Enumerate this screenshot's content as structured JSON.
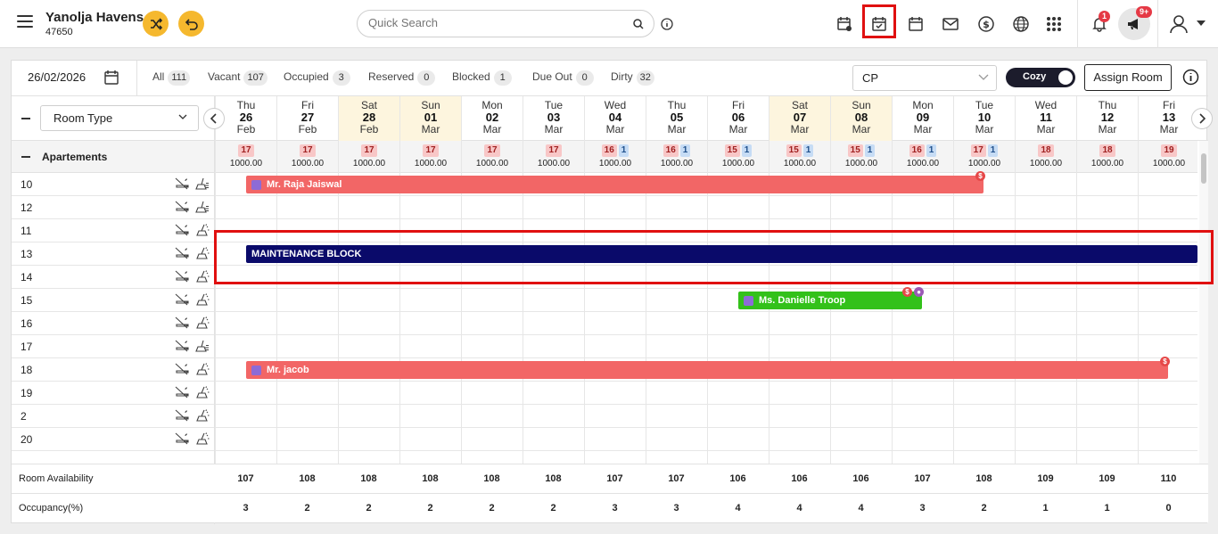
{
  "app": {
    "hotel_name": "Yanolja Havens",
    "hotel_id": "47650"
  },
  "search": {
    "placeholder": "Quick Search"
  },
  "notifications": {
    "bell_count": "1",
    "announce_count": "9+"
  },
  "colors": {
    "accent": "#f5b82e",
    "booking_red": "#f26666",
    "block_navy": "#0a0a6a",
    "booking_green": "#33c11a",
    "weekend": "#fdf5de"
  },
  "filterbar": {
    "date": "26/02/2026",
    "filters": [
      {
        "label": "All",
        "count": "111"
      },
      {
        "label": "Vacant",
        "count": "107"
      },
      {
        "label": "Occupied",
        "count": "3"
      },
      {
        "label": "Reserved",
        "count": "0"
      },
      {
        "label": "Blocked",
        "count": "1"
      },
      {
        "label": "Due Out",
        "count": "0"
      },
      {
        "label": "Dirty",
        "count": "32"
      }
    ],
    "rate_plan": "CP",
    "view_toggle": "Cozy",
    "assign_button": "Assign Room"
  },
  "grid": {
    "room_type_select": "Room Type",
    "days": [
      {
        "dn": "Thu",
        "dd": "26",
        "mm": "Feb",
        "weekend": false
      },
      {
        "dn": "Fri",
        "dd": "27",
        "mm": "Feb",
        "weekend": false
      },
      {
        "dn": "Sat",
        "dd": "28",
        "mm": "Feb",
        "weekend": true
      },
      {
        "dn": "Sun",
        "dd": "01",
        "mm": "Mar",
        "weekend": true
      },
      {
        "dn": "Mon",
        "dd": "02",
        "mm": "Mar",
        "weekend": false
      },
      {
        "dn": "Tue",
        "dd": "03",
        "mm": "Mar",
        "weekend": false
      },
      {
        "dn": "Wed",
        "dd": "04",
        "mm": "Mar",
        "weekend": false
      },
      {
        "dn": "Thu",
        "dd": "05",
        "mm": "Mar",
        "weekend": false
      },
      {
        "dn": "Fri",
        "dd": "06",
        "mm": "Mar",
        "weekend": false
      },
      {
        "dn": "Sat",
        "dd": "07",
        "mm": "Mar",
        "weekend": true
      },
      {
        "dn": "Sun",
        "dd": "08",
        "mm": "Mar",
        "weekend": true
      },
      {
        "dn": "Mon",
        "dd": "09",
        "mm": "Mar",
        "weekend": false
      },
      {
        "dn": "Tue",
        "dd": "10",
        "mm": "Mar",
        "weekend": false
      },
      {
        "dn": "Wed",
        "dd": "11",
        "mm": "Mar",
        "weekend": false
      },
      {
        "dn": "Thu",
        "dd": "12",
        "mm": "Mar",
        "weekend": false
      },
      {
        "dn": "Fri",
        "dd": "13",
        "mm": "Mar",
        "weekend": false
      }
    ],
    "category": {
      "name": "Apartements",
      "avail": [
        {
          "a": "17",
          "b": ""
        },
        {
          "a": "17",
          "b": ""
        },
        {
          "a": "17",
          "b": ""
        },
        {
          "a": "17",
          "b": ""
        },
        {
          "a": "17",
          "b": ""
        },
        {
          "a": "17",
          "b": ""
        },
        {
          "a": "16",
          "b": "1"
        },
        {
          "a": "16",
          "b": "1"
        },
        {
          "a": "15",
          "b": "1"
        },
        {
          "a": "15",
          "b": "1"
        },
        {
          "a": "15",
          "b": "1"
        },
        {
          "a": "16",
          "b": "1"
        },
        {
          "a": "17",
          "b": "1"
        },
        {
          "a": "18",
          "b": ""
        },
        {
          "a": "18",
          "b": ""
        },
        {
          "a": "19",
          "b": ""
        }
      ],
      "rate": "1000.00"
    },
    "rooms": [
      {
        "no": "10",
        "clean": false
      },
      {
        "no": "12",
        "clean": false
      },
      {
        "no": "11",
        "clean": true
      },
      {
        "no": "13",
        "clean": true
      },
      {
        "no": "14",
        "clean": true
      },
      {
        "no": "15",
        "clean": true
      },
      {
        "no": "16",
        "clean": true
      },
      {
        "no": "17",
        "clean": false
      },
      {
        "no": "18",
        "clean": true
      },
      {
        "no": "19",
        "clean": true
      },
      {
        "no": "2",
        "clean": true
      },
      {
        "no": "20",
        "clean": true
      }
    ],
    "bookings": [
      {
        "name": "Mr. Raja Jaiswal",
        "row": 0,
        "start": 0,
        "end": 12,
        "color": "#f26666",
        "icon": true,
        "badges": [
          "$"
        ]
      },
      {
        "name": "MAINTENANCE BLOCK",
        "row": 3,
        "start": 0,
        "end": 16,
        "color": "#0a0a6a",
        "icon": false,
        "badges": []
      },
      {
        "name": "Ms. Danielle Troop",
        "row": 5,
        "start": 8,
        "end": 11,
        "color": "#33c11a",
        "icon": true,
        "badges": [
          "$",
          "●"
        ]
      },
      {
        "name": "Mr. jacob",
        "row": 8,
        "start": 0,
        "end": 15,
        "color": "#f26666",
        "icon": true,
        "badges": [
          "$"
        ]
      }
    ]
  },
  "footer": {
    "availability_label": "Room Availability",
    "availability": [
      "107",
      "108",
      "108",
      "108",
      "108",
      "108",
      "107",
      "107",
      "106",
      "106",
      "106",
      "107",
      "108",
      "109",
      "109",
      "110"
    ],
    "occupancy_label": "Occupancy(%)",
    "occupancy": [
      "3",
      "2",
      "2",
      "2",
      "2",
      "2",
      "3",
      "3",
      "4",
      "4",
      "4",
      "3",
      "2",
      "1",
      "1",
      "0"
    ]
  }
}
